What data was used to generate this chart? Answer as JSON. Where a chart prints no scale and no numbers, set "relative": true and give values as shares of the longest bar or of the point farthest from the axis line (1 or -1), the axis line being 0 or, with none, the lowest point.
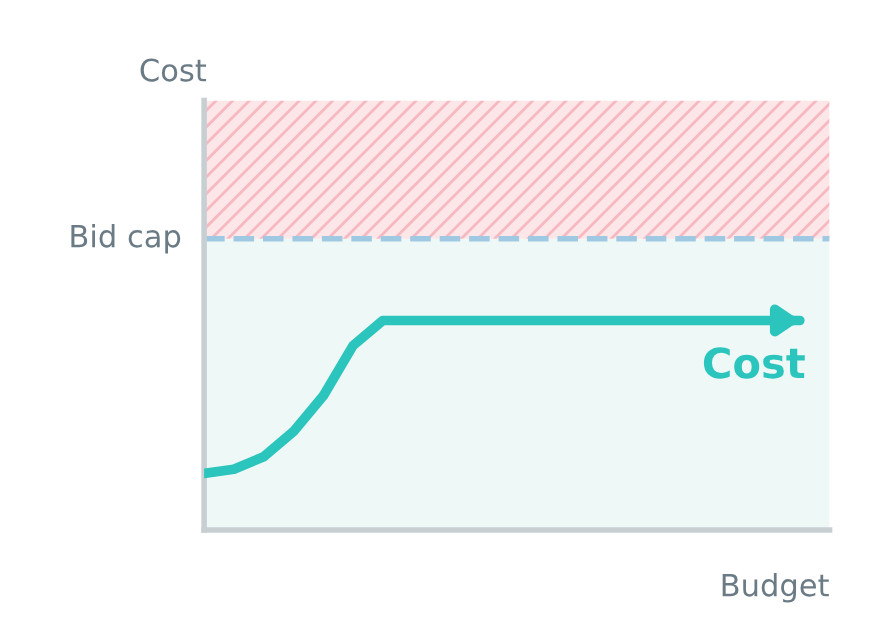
{
  "chart_data": {
    "type": "line",
    "relative": true,
    "xlabel": "Budget",
    "annotations": [
      "Cost"
    ],
    "categories": [
      null,
      null,
      null,
      null,
      null,
      null,
      null,
      null,
      null,
      null,
      null,
      null,
      null,
      null,
      null,
      null,
      null,
      null,
      null,
      null,
      null
    ],
    "series": [
      {
        "name": "Cost",
        "color": "#2cc5bd",
        "values": [
          0.27,
          0.29,
          0.35,
          0.47,
          0.64,
          0.88,
          1.0,
          1.0,
          1.0,
          1.0,
          1.0,
          1.0,
          1.0,
          1.0,
          1.0,
          1.0,
          1.0,
          1.0,
          1.0,
          1.0,
          1.0
        ]
      }
    ],
    "ref_lines": [
      {
        "axis": "y",
        "value": 1.39,
        "label": "Bid cap",
        "color": "#9fc9e3",
        "line_style": "dashed"
      }
    ],
    "bands": [
      {
        "axis": "y",
        "from": 0,
        "to": 1.39,
        "color": "#eef8f7"
      },
      {
        "axis": "y",
        "from": 1.39,
        "to": 2.05,
        "color": "#fde6e8"
      }
    ],
    "marker": "none",
    "line_style": "solid"
  }
}
